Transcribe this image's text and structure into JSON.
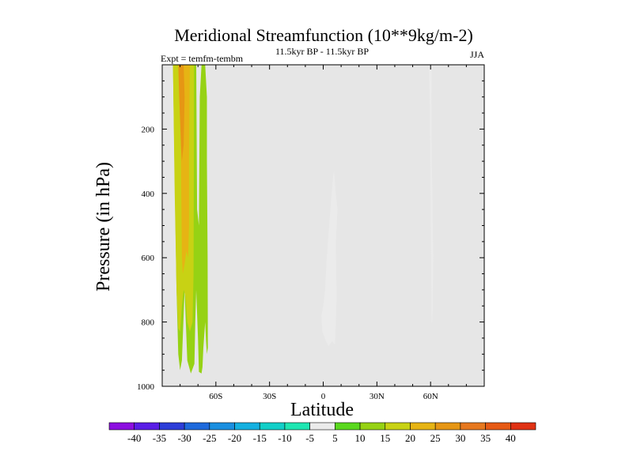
{
  "chart_data": {
    "type": "contour",
    "title": "Meridional Streamfunction (10**9kg/m-2)",
    "subtitle": "11.5kyr BP - 11.5kyr BP",
    "left_label": "Expt = temfm-tembm",
    "right_label": "JJA",
    "xlabel": "Latitude",
    "ylabel": "Pressure (in hPa)",
    "xlim": [
      -90,
      90
    ],
    "ylim": [
      1000,
      0
    ],
    "x_ticks": [
      {
        "value": -60,
        "label": "60S"
      },
      {
        "value": -30,
        "label": "30S"
      },
      {
        "value": 0,
        "label": "0"
      },
      {
        "value": 30,
        "label": "30N"
      },
      {
        "value": 60,
        "label": "60N"
      }
    ],
    "y_ticks": [
      {
        "value": 200,
        "label": "200"
      },
      {
        "value": 400,
        "label": "400"
      },
      {
        "value": 600,
        "label": "600"
      },
      {
        "value": 800,
        "label": "800"
      },
      {
        "value": 1000,
        "label": "1000"
      }
    ],
    "background_color": "#e6e6e6",
    "colorbar": {
      "levels": [
        -40,
        -35,
        -30,
        -25,
        -20,
        -15,
        -10,
        -5,
        5,
        10,
        15,
        20,
        25,
        30,
        35,
        40
      ],
      "labels": [
        "-40",
        "-35",
        "-30",
        "-25",
        "-20",
        "-15",
        "-10",
        "-5",
        "5",
        "10",
        "15",
        "20",
        "25",
        "30",
        "35",
        "40"
      ],
      "colors": [
        "#8c0fe0",
        "#5a1ee6",
        "#2d3ed8",
        "#1e6adc",
        "#1a8fe0",
        "#14b0e0",
        "#12cfc8",
        "#1ee6b2",
        "#ebebeb",
        "#5ad81e",
        "#96d214",
        "#c8d214",
        "#e6b414",
        "#e69614",
        "#e6781e",
        "#e65a14",
        "#e03214"
      ]
    },
    "regions": [
      {
        "name": "sh-polar-cell-outer",
        "level": 10,
        "points": [
          [
            -87,
            0
          ],
          [
            -84,
            0
          ],
          [
            -83,
            350
          ],
          [
            -82,
            700
          ],
          [
            -81,
            900
          ],
          [
            -80,
            950
          ],
          [
            -79,
            920
          ],
          [
            -77.5,
            700
          ],
          [
            -76,
            920
          ],
          [
            -74,
            960
          ],
          [
            -72,
            930
          ],
          [
            -71.5,
            800
          ],
          [
            -71,
            700
          ],
          [
            -70,
            850
          ],
          [
            -69.5,
            955
          ],
          [
            -68,
            960
          ],
          [
            -67.5,
            940
          ],
          [
            -67,
            880
          ],
          [
            -66,
            800
          ],
          [
            -65.5,
            860
          ],
          [
            -65,
            900
          ],
          [
            -64.5,
            880
          ],
          [
            -64.6,
            600
          ],
          [
            -65,
            300
          ],
          [
            -65,
            100
          ],
          [
            -66,
            0
          ],
          [
            -68,
            0
          ],
          [
            -69,
            100
          ],
          [
            -69.5,
            500
          ],
          [
            -70.5,
            450
          ],
          [
            -71,
            0
          ],
          [
            -87,
            0
          ]
        ]
      },
      {
        "name": "sh-polar-cell-mid",
        "level": 15,
        "points": [
          [
            -86,
            0
          ],
          [
            -84,
            0
          ],
          [
            -83,
            400
          ],
          [
            -82,
            700
          ],
          [
            -81,
            820
          ],
          [
            -80,
            830
          ],
          [
            -79,
            750
          ],
          [
            -78,
            700
          ],
          [
            -77,
            720
          ],
          [
            -76,
            800
          ],
          [
            -74.5,
            830
          ],
          [
            -73,
            800
          ],
          [
            -72.5,
            650
          ],
          [
            -72.3,
            300
          ],
          [
            -72.2,
            0
          ],
          [
            -86,
            0
          ]
        ]
      },
      {
        "name": "sh-polar-cell-inner",
        "level": 20,
        "points": [
          [
            -84,
            0
          ],
          [
            -80,
            0
          ],
          [
            -79.5,
            300
          ],
          [
            -79,
            600
          ],
          [
            -78.5,
            650
          ],
          [
            -77.5,
            620
          ],
          [
            -76.5,
            580
          ],
          [
            -75.5,
            600
          ],
          [
            -75,
            500
          ],
          [
            -75,
            300
          ],
          [
            -74.5,
            0
          ],
          [
            -84,
            0
          ]
        ]
      },
      {
        "name": "sh-polar-cell-core",
        "level": 25,
        "points": [
          [
            -81,
            0
          ],
          [
            -78,
            0
          ],
          [
            -77.5,
            100
          ],
          [
            -78,
            250
          ],
          [
            -79,
            300
          ],
          [
            -79.5,
            250
          ],
          [
            -80.5,
            100
          ],
          [
            -81,
            0
          ]
        ]
      },
      {
        "name": "tropical-cell",
        "level": -5,
        "points": [
          [
            6,
            330
          ],
          [
            7,
            400
          ],
          [
            8,
            450
          ],
          [
            7.5,
            500
          ],
          [
            7,
            560
          ],
          [
            7.3,
            650
          ],
          [
            7.5,
            720
          ],
          [
            6.8,
            840
          ],
          [
            6.5,
            870
          ],
          [
            5,
            860
          ],
          [
            3,
            875
          ],
          [
            1.5,
            860
          ],
          [
            -0.5,
            830
          ],
          [
            -1,
            780
          ],
          [
            0,
            750
          ],
          [
            1,
            700
          ],
          [
            2,
            600
          ],
          [
            4,
            450
          ],
          [
            5.5,
            350
          ],
          [
            6,
            330
          ]
        ]
      },
      {
        "name": "nh-high-latitude-cell",
        "level": -5,
        "points": [
          [
            59,
            0
          ],
          [
            60.5,
            0
          ],
          [
            60.5,
            200
          ],
          [
            61,
            400
          ],
          [
            61.5,
            600
          ],
          [
            61.2,
            750
          ],
          [
            60.8,
            810
          ],
          [
            60.5,
            780
          ],
          [
            60.3,
            600
          ],
          [
            59.8,
            300
          ],
          [
            59.5,
            100
          ],
          [
            59,
            0
          ]
        ]
      }
    ]
  }
}
